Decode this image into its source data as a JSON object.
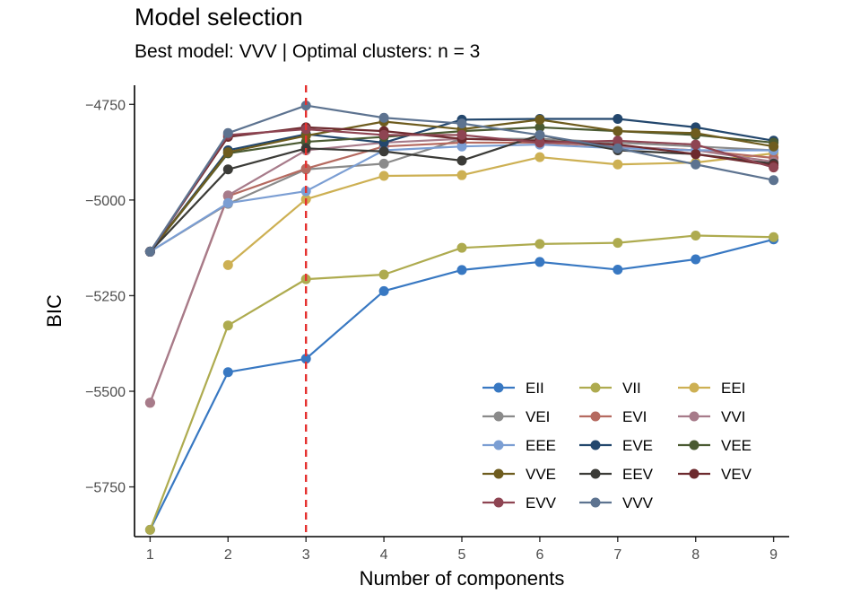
{
  "chart_data": {
    "type": "line",
    "title": "Model selection",
    "subtitle": "Best model: VVV | Optimal clusters: n = 3",
    "xlabel": "Number of components",
    "ylabel": "BIC",
    "x": [
      1,
      2,
      3,
      4,
      5,
      6,
      7,
      8,
      9
    ],
    "xlim": [
      0.8,
      9.2
    ],
    "ylim": [
      -5880,
      -4700
    ],
    "yticks": [
      -4750,
      -5000,
      -5250,
      -5500,
      -5750
    ],
    "ytick_labels": [
      "−4750",
      "−5000",
      "−5250",
      "−5500",
      "−5750"
    ],
    "xtick_labels": [
      "1",
      "2",
      "3",
      "4",
      "5",
      "6",
      "7",
      "8",
      "9"
    ],
    "grid": false,
    "optimal_line": {
      "x": 3,
      "color": "#e5312f",
      "style": "dashed"
    },
    "legend": {
      "position": "bottom-right",
      "columns": 3
    },
    "series": [
      {
        "name": "EII",
        "color": "#3878c2",
        "values": [
          -5862,
          -5450,
          -5415,
          -5238,
          -5183,
          -5162,
          -5182,
          -5155,
          -5103
        ]
      },
      {
        "name": "VII",
        "color": "#aeab4f",
        "values": [
          -5862,
          -5328,
          -5207,
          -5195,
          -5125,
          -5115,
          -5112,
          -5093,
          -5097
        ]
      },
      {
        "name": "EEI",
        "color": "#cdb053",
        "values": [
          null,
          -5170,
          -4998,
          -4937,
          -4935,
          -4888,
          -4907,
          -4902,
          -4878
        ]
      },
      {
        "name": "VEI",
        "color": "#8a8a8a",
        "values": [
          -5135,
          -5010,
          -4920,
          -4905,
          -4840,
          -4840,
          -4850,
          -4860,
          -4870
        ]
      },
      {
        "name": "EVI",
        "color": "#b56a60",
        "values": [
          -5530,
          -4990,
          -4918,
          -4860,
          -4850,
          -4850,
          -4860,
          -4870,
          -4890
        ]
      },
      {
        "name": "VVI",
        "color": "#a77b8a",
        "values": [
          -5530,
          -4988,
          -4870,
          -4850,
          -4840,
          -4845,
          -4860,
          -4870,
          -4900
        ]
      },
      {
        "name": "EEE",
        "color": "#7b9ed3",
        "values": [
          -5135,
          -5008,
          -4977,
          -4870,
          -4860,
          -4855,
          -4865,
          -4870,
          -4870
        ]
      },
      {
        "name": "EVE",
        "color": "#23476d",
        "values": [
          -5135,
          -4870,
          -4828,
          -4850,
          -4790,
          -4788,
          -4788,
          -4810,
          -4845
        ]
      },
      {
        "name": "VEE",
        "color": "#4a5a32",
        "values": [
          -5135,
          -4878,
          -4848,
          -4835,
          -4820,
          -4810,
          -4820,
          -4830,
          -4850
        ]
      },
      {
        "name": "VVE",
        "color": "#6e5c1e",
        "values": [
          -5135,
          -4875,
          -4832,
          -4795,
          -4815,
          -4790,
          -4820,
          -4825,
          -4860
        ]
      },
      {
        "name": "EEV",
        "color": "#3b3b37",
        "values": [
          -5135,
          -4920,
          -4865,
          -4873,
          -4897,
          -4830,
          -4870,
          -4880,
          -4905
        ]
      },
      {
        "name": "VEV",
        "color": "#6d2a2e",
        "values": [
          -5135,
          -4835,
          -4810,
          -4820,
          -4840,
          -4845,
          -4855,
          -4880,
          -4910
        ]
      },
      {
        "name": "EVV",
        "color": "#8e4452",
        "values": [
          -5135,
          -4830,
          -4815,
          -4830,
          -4830,
          -4850,
          -4845,
          -4855,
          -4915
        ]
      },
      {
        "name": "VVV",
        "color": "#5d7390",
        "values": [
          -5135,
          -4825,
          -4753,
          -4785,
          -4800,
          -4830,
          -4865,
          -4907,
          -4948
        ]
      }
    ]
  }
}
